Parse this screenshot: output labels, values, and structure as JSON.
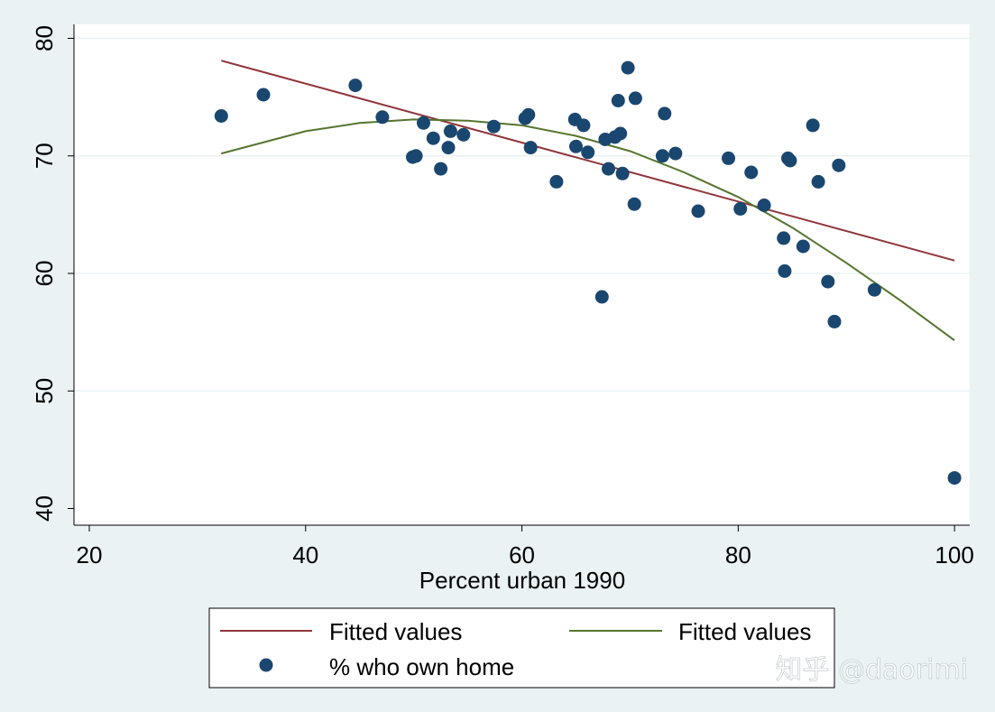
{
  "chart_data": {
    "type": "scatter",
    "xlabel": "Percent urban 1990",
    "ylabel": "",
    "xlim": [
      20,
      100
    ],
    "ylim": [
      40,
      80
    ],
    "x_ticks": [
      20,
      40,
      60,
      80,
      100
    ],
    "y_ticks": [
      40,
      50,
      60,
      70,
      80
    ],
    "grid": true,
    "legend_position": "bottom",
    "series": [
      {
        "name": "% who own home",
        "kind": "scatter",
        "color": "#1a476f",
        "points": [
          [
            32.2,
            73.4
          ],
          [
            36.1,
            75.2
          ],
          [
            44.6,
            76.0
          ],
          [
            47.1,
            73.3
          ],
          [
            49.9,
            69.9
          ],
          [
            50.2,
            70.0
          ],
          [
            50.9,
            72.8
          ],
          [
            51.8,
            71.5
          ],
          [
            52.5,
            68.9
          ],
          [
            53.2,
            70.7
          ],
          [
            53.4,
            72.1
          ],
          [
            54.6,
            71.8
          ],
          [
            57.4,
            72.5
          ],
          [
            60.3,
            73.2
          ],
          [
            60.6,
            73.5
          ],
          [
            60.8,
            70.7
          ],
          [
            63.2,
            67.8
          ],
          [
            64.9,
            73.1
          ],
          [
            65.0,
            70.8
          ],
          [
            65.7,
            72.6
          ],
          [
            66.1,
            70.3
          ],
          [
            67.4,
            58.0
          ],
          [
            67.7,
            71.4
          ],
          [
            68.0,
            68.9
          ],
          [
            68.6,
            71.6
          ],
          [
            68.9,
            74.7
          ],
          [
            69.1,
            71.9
          ],
          [
            69.3,
            68.5
          ],
          [
            69.8,
            77.5
          ],
          [
            70.4,
            65.9
          ],
          [
            70.5,
            74.9
          ],
          [
            73.0,
            70.0
          ],
          [
            73.2,
            73.6
          ],
          [
            74.2,
            70.2
          ],
          [
            76.3,
            65.3
          ],
          [
            79.1,
            69.8
          ],
          [
            80.2,
            65.5
          ],
          [
            81.2,
            68.6
          ],
          [
            82.4,
            65.8
          ],
          [
            84.2,
            63.0
          ],
          [
            84.3,
            60.2
          ],
          [
            84.6,
            69.8
          ],
          [
            84.8,
            69.6
          ],
          [
            86.0,
            62.3
          ],
          [
            86.9,
            72.6
          ],
          [
            87.4,
            67.8
          ],
          [
            88.3,
            59.3
          ],
          [
            88.9,
            55.9
          ],
          [
            89.3,
            69.2
          ],
          [
            92.6,
            58.6
          ],
          [
            100.0,
            42.6
          ]
        ]
      },
      {
        "name": "Fitted values",
        "kind": "line",
        "color": "#90353b",
        "fit": "linear",
        "x": [
          32.2,
          100.0
        ],
        "y": [
          78.1,
          61.1
        ]
      },
      {
        "name": "Fitted values",
        "kind": "line",
        "color": "#55752f",
        "fit": "quadratic",
        "x": [
          32.2,
          40,
          45,
          50,
          55,
          60,
          65,
          70,
          75,
          80,
          85,
          90,
          95,
          100
        ],
        "y": [
          70.2,
          72.1,
          72.8,
          73.1,
          73.0,
          72.6,
          71.7,
          70.4,
          68.6,
          66.5,
          63.9,
          60.9,
          57.7,
          54.3
        ]
      }
    ],
    "legend": {
      "items": [
        {
          "label": "Fitted values",
          "marker": "line",
          "color": "#90353b"
        },
        {
          "label": "Fitted values",
          "marker": "line",
          "color": "#55752f"
        },
        {
          "label": "% who own home",
          "marker": "circle",
          "color": "#1a476f"
        }
      ]
    }
  },
  "watermark": "知乎 @daorimi",
  "colors": {
    "background": "#eaf2f3",
    "plot_background": "#ffffff",
    "grid": "#eaf2f3",
    "marker": "#1a476f",
    "linear_fit": "#90353b",
    "quadratic_fit": "#55752f"
  }
}
